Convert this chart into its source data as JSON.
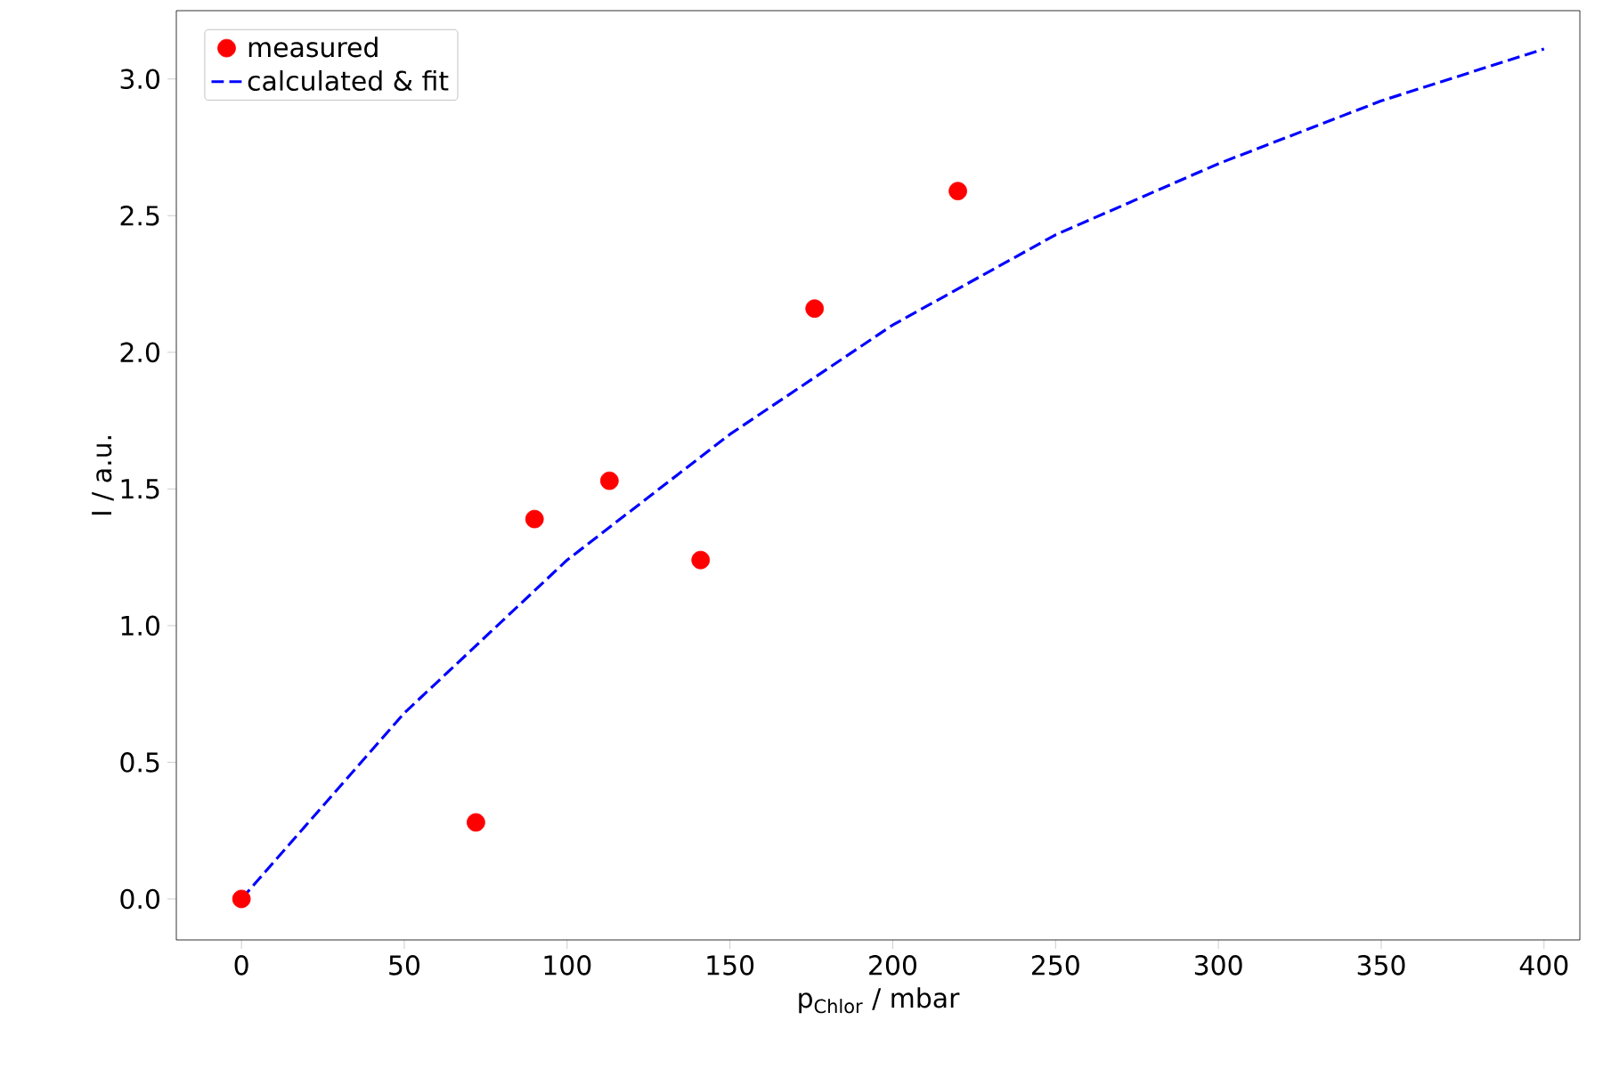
{
  "chart_data": {
    "type": "scatter",
    "xlabel": "p$_{Chlor}$ / mbar",
    "ylabel": "I / a.u.",
    "xlim": [
      -20,
      411
    ],
    "ylim": [
      -0.15,
      3.25
    ],
    "xticks": [
      0,
      50,
      100,
      150,
      200,
      250,
      300,
      350,
      400
    ],
    "yticks": [
      {
        "value": 0,
        "label": "0.0"
      },
      {
        "value": 0.5,
        "label": "0.5"
      },
      {
        "value": 1,
        "label": "1.0"
      },
      {
        "value": 1.5,
        "label": "1.5"
      },
      {
        "value": 2,
        "label": "2.0"
      },
      {
        "value": 2.5,
        "label": "2.5"
      },
      {
        "value": 3,
        "label": "3.0"
      }
    ],
    "legend": "top left",
    "grid": false,
    "series": [
      {
        "name": "measured",
        "color": "#ff0000",
        "marker": "circle",
        "x": [
          0,
          72,
          90,
          113,
          141,
          176,
          220
        ],
        "values": [
          0,
          0.28,
          1.39,
          1.53,
          1.24,
          2.16,
          2.59
        ]
      },
      {
        "name": "calculated & fit",
        "type": "line",
        "color": "#0000ff",
        "line_style": "dashed",
        "marker": "none",
        "x": [
          0,
          50,
          100,
          150,
          200,
          250,
          300,
          350,
          400
        ],
        "values": [
          0,
          0.68,
          1.24,
          1.7,
          2.1,
          2.43,
          2.69,
          2.92,
          3.11
        ]
      }
    ]
  }
}
